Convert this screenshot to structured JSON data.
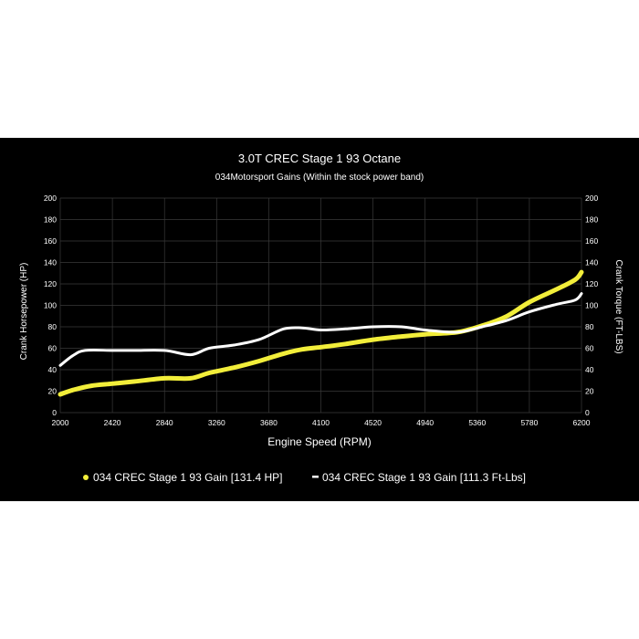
{
  "chart_data": {
    "type": "line",
    "title": "3.0T CREC Stage 1 93 Octane",
    "subtitle": "034Motorsport Gains (Within the stock power band)",
    "xlabel": "Engine Speed (RPM)",
    "ylabel_left": "Crank Horsepower (HP)",
    "ylabel_right": "Crank Torque (FT-LBS)",
    "xlim": [
      2000,
      6200
    ],
    "ylim": [
      0,
      200
    ],
    "x_ticks": [
      "2000",
      "2420",
      "2840",
      "3260",
      "3680",
      "4100",
      "4520",
      "4940",
      "5360",
      "5780",
      "6200"
    ],
    "y_ticks": [
      "0",
      "20",
      "40",
      "60",
      "80",
      "100",
      "120",
      "140",
      "160",
      "180",
      "200"
    ],
    "grid": true,
    "legend_position": "bottom",
    "series": [
      {
        "name": "034 CREC Stage 1 93 Gain [131.4 HP]",
        "color": "#f2ee3a",
        "x": [
          2000,
          2100,
          2250,
          2420,
          2600,
          2840,
          3050,
          3200,
          3400,
          3600,
          3800,
          3950,
          4100,
          4300,
          4520,
          4750,
          4940,
          5200,
          5400,
          5600,
          5780,
          6000,
          6150,
          6200
        ],
        "y": [
          17,
          21,
          25,
          27,
          29,
          32,
          32,
          37,
          42,
          48,
          55,
          59,
          61,
          64,
          68,
          71,
          73,
          75,
          81,
          90,
          103,
          115,
          124,
          131
        ]
      },
      {
        "name": "034 CREC Stage 1 93 Gain [111.3 Ft-Lbs]",
        "color": "#ffffff",
        "x": [
          2000,
          2100,
          2200,
          2420,
          2600,
          2840,
          3050,
          3200,
          3400,
          3600,
          3800,
          3950,
          4100,
          4300,
          4520,
          4750,
          4940,
          5200,
          5400,
          5600,
          5780,
          6000,
          6150,
          6200
        ],
        "y": [
          44,
          53,
          58,
          58,
          58,
          58,
          54,
          60,
          63,
          68,
          78,
          79,
          77,
          78,
          80,
          80,
          77,
          75,
          80,
          86,
          94,
          101,
          105,
          111
        ]
      }
    ]
  }
}
